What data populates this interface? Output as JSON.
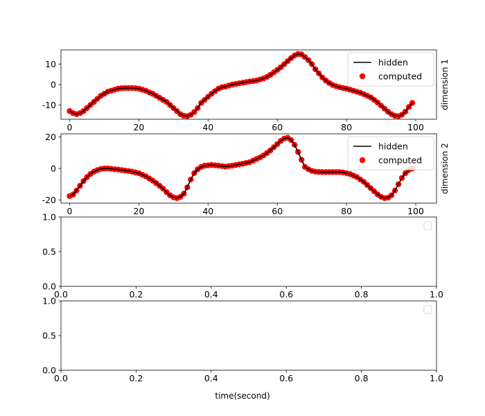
{
  "figure": {
    "xlabel": "time(second)"
  },
  "legend_labels": {
    "hidden": "hidden",
    "computed": "computed"
  },
  "colors": {
    "hidden_line": "#000000",
    "computed_points": "#ff0000",
    "axes": "#000000",
    "background": "#ffffff"
  },
  "chart_data": [
    {
      "type": "line",
      "title": "",
      "ylabel_right": "dimension 1",
      "xlim": [
        -2.5,
        106
      ],
      "ylim": [
        -17,
        17
      ],
      "xticks": [
        0,
        20,
        40,
        60,
        80,
        100
      ],
      "yticks": [
        -10,
        0,
        10
      ],
      "grid": false,
      "legend": {
        "position": "upper right",
        "entries": [
          "hidden",
          "computed"
        ]
      },
      "series": [
        {
          "name": "hidden",
          "kind": "line",
          "x": [
            0,
            1,
            2,
            3,
            4,
            5,
            6,
            7,
            8,
            9,
            10,
            11,
            12,
            13,
            14,
            15,
            16,
            17,
            18,
            19,
            20,
            21,
            22,
            23,
            24,
            25,
            26,
            27,
            28,
            29,
            30,
            31,
            32,
            33,
            34,
            35,
            36,
            37,
            38,
            39,
            40,
            41,
            42,
            43,
            44,
            45,
            46,
            47,
            48,
            49,
            50,
            51,
            52,
            53,
            54,
            55,
            56,
            57,
            58,
            59,
            60,
            61,
            62,
            63,
            64,
            65,
            66,
            67,
            68,
            69,
            70,
            71,
            72,
            73,
            74,
            75,
            76,
            77,
            78,
            79,
            80,
            81,
            82,
            83,
            84,
            85,
            86,
            87,
            88,
            89,
            90,
            91,
            92,
            93,
            94,
            95,
            96,
            97,
            98,
            99
          ],
          "y": [
            -13,
            -14,
            -14.5,
            -14,
            -13,
            -11.5,
            -10,
            -8.5,
            -7,
            -5.5,
            -4.5,
            -3.5,
            -3,
            -2.5,
            -2,
            -1.8,
            -1.7,
            -1.7,
            -1.7,
            -1.8,
            -2,
            -2.5,
            -3,
            -3.8,
            -4.5,
            -5.5,
            -6.5,
            -7.5,
            -8.5,
            -10,
            -11.5,
            -13,
            -14.5,
            -15.3,
            -15.5,
            -14.8,
            -13.5,
            -11.5,
            -9,
            -7.5,
            -6,
            -4.5,
            -3.2,
            -2,
            -1.3,
            -1,
            -0.5,
            0,
            0.3,
            0.6,
            0.9,
            1.2,
            1.5,
            1.7,
            2,
            2.5,
            3,
            3.8,
            4.8,
            6,
            7.2,
            8.5,
            10,
            11.5,
            13,
            14.3,
            15,
            14.8,
            13.5,
            12,
            10,
            7.5,
            5.5,
            3.5,
            2,
            0.8,
            -0.2,
            -0.8,
            -1.3,
            -1.7,
            -2,
            -2.5,
            -3,
            -3.5,
            -4,
            -4.7,
            -5.5,
            -6.3,
            -7.5,
            -8.8,
            -10.3,
            -11.8,
            -13.3,
            -14.5,
            -15.3,
            -15.5,
            -14.8,
            -13.3,
            -11,
            -9
          ]
        },
        {
          "name": "computed",
          "kind": "scatter",
          "x": [
            0,
            1,
            2,
            3,
            4,
            5,
            6,
            7,
            8,
            9,
            10,
            11,
            12,
            13,
            14,
            15,
            16,
            17,
            18,
            19,
            20,
            21,
            22,
            23,
            24,
            25,
            26,
            27,
            28,
            29,
            30,
            31,
            32,
            33,
            34,
            35,
            36,
            37,
            38,
            39,
            40,
            41,
            42,
            43,
            44,
            45,
            46,
            47,
            48,
            49,
            50,
            51,
            52,
            53,
            54,
            55,
            56,
            57,
            58,
            59,
            60,
            61,
            62,
            63,
            64,
            65,
            66,
            67,
            68,
            69,
            70,
            71,
            72,
            73,
            74,
            75,
            76,
            77,
            78,
            79,
            80,
            81,
            82,
            83,
            84,
            85,
            86,
            87,
            88,
            89,
            90,
            91,
            92,
            93,
            94,
            95,
            96,
            97,
            98,
            99
          ],
          "y": [
            -13,
            -14,
            -14.5,
            -14,
            -13,
            -11.5,
            -10,
            -8.5,
            -7,
            -5.5,
            -4.5,
            -3.5,
            -3,
            -2.5,
            -2,
            -1.8,
            -1.7,
            -1.7,
            -1.7,
            -1.8,
            -2,
            -2.5,
            -3,
            -3.8,
            -4.5,
            -5.5,
            -6.5,
            -7.5,
            -8.5,
            -10,
            -11.5,
            -13,
            -14.5,
            -15.3,
            -15.5,
            -14.8,
            -13.5,
            -11.5,
            -9,
            -7.5,
            -6,
            -4.5,
            -3.2,
            -2,
            -1.3,
            -1,
            -0.5,
            0,
            0.3,
            0.6,
            0.9,
            1.2,
            1.5,
            1.7,
            2,
            2.5,
            3,
            3.8,
            4.8,
            6,
            7.2,
            8.5,
            10,
            11.5,
            13,
            14.3,
            15,
            14.8,
            13.5,
            12,
            10,
            7.5,
            5.5,
            3.5,
            2,
            0.8,
            -0.2,
            -0.8,
            -1.3,
            -1.7,
            -2,
            -2.5,
            -3,
            -3.5,
            -4,
            -4.7,
            -5.5,
            -6.3,
            -7.5,
            -8.8,
            -10.3,
            -11.8,
            -13.3,
            -14.5,
            -15.3,
            -15.5,
            -14.8,
            -13.3,
            -11,
            -9
          ]
        }
      ]
    },
    {
      "type": "line",
      "title": "",
      "ylabel_right": "dimension 2",
      "xlim": [
        -2.5,
        106
      ],
      "ylim": [
        -22,
        22
      ],
      "xticks": [
        0,
        20,
        40,
        60,
        80,
        100
      ],
      "yticks": [
        -20,
        0,
        20
      ],
      "grid": false,
      "legend": {
        "position": "upper right",
        "entries": [
          "hidden",
          "computed"
        ]
      },
      "series": [
        {
          "name": "hidden",
          "kind": "line",
          "x": [
            0,
            1,
            2,
            3,
            4,
            5,
            6,
            7,
            8,
            9,
            10,
            11,
            12,
            13,
            14,
            15,
            16,
            17,
            18,
            19,
            20,
            21,
            22,
            23,
            24,
            25,
            26,
            27,
            28,
            29,
            30,
            31,
            32,
            33,
            34,
            35,
            36,
            37,
            38,
            39,
            40,
            41,
            42,
            43,
            44,
            45,
            46,
            47,
            48,
            49,
            50,
            51,
            52,
            53,
            54,
            55,
            56,
            57,
            58,
            59,
            60,
            61,
            62,
            63,
            64,
            65,
            66,
            67,
            68,
            69,
            70,
            71,
            72,
            73,
            74,
            75,
            76,
            77,
            78,
            79,
            80,
            81,
            82,
            83,
            84,
            85,
            86,
            87,
            88,
            89,
            90,
            91,
            92,
            93,
            94,
            95,
            96,
            97,
            98,
            99
          ],
          "y": [
            -17.5,
            -16.5,
            -14,
            -11,
            -8,
            -5.5,
            -3.5,
            -2,
            -1,
            -0.3,
            0,
            0,
            -0.2,
            -0.5,
            -0.7,
            -1,
            -1.3,
            -1.6,
            -2,
            -2.5,
            -3,
            -4,
            -5,
            -6.3,
            -7.7,
            -9.3,
            -11,
            -12.8,
            -15,
            -17,
            -18.3,
            -18.8,
            -18,
            -16,
            -12,
            -7,
            -3,
            -0.5,
            1,
            1.8,
            2,
            2.2,
            2,
            1.8,
            1.5,
            1.2,
            1.5,
            1.8,
            2.2,
            2.6,
            3,
            3.5,
            4,
            5,
            6,
            7,
            8.3,
            9.8,
            11.5,
            13.5,
            15.5,
            17.5,
            19,
            19.5,
            18,
            15,
            10.5,
            5.5,
            1,
            -0.5,
            -1.5,
            -2,
            -2.2,
            -2.3,
            -2.3,
            -2.3,
            -2.3,
            -2.3,
            -2.3,
            -2.5,
            -3,
            -3.5,
            -4.5,
            -5.5,
            -7,
            -8.5,
            -10.5,
            -12.5,
            -14.5,
            -16.5,
            -18,
            -18.8,
            -18.5,
            -17,
            -14,
            -10,
            -6,
            -3,
            -1,
            0
          ]
        },
        {
          "name": "computed",
          "kind": "scatter",
          "x": [
            0,
            1,
            2,
            3,
            4,
            5,
            6,
            7,
            8,
            9,
            10,
            11,
            12,
            13,
            14,
            15,
            16,
            17,
            18,
            19,
            20,
            21,
            22,
            23,
            24,
            25,
            26,
            27,
            28,
            29,
            30,
            31,
            32,
            33,
            34,
            35,
            36,
            37,
            38,
            39,
            40,
            41,
            42,
            43,
            44,
            45,
            46,
            47,
            48,
            49,
            50,
            51,
            52,
            53,
            54,
            55,
            56,
            57,
            58,
            59,
            60,
            61,
            62,
            63,
            64,
            65,
            66,
            67,
            68,
            69,
            70,
            71,
            72,
            73,
            74,
            75,
            76,
            77,
            78,
            79,
            80,
            81,
            82,
            83,
            84,
            85,
            86,
            87,
            88,
            89,
            90,
            91,
            92,
            93,
            94,
            95,
            96,
            97,
            98,
            99
          ],
          "y": [
            -17.5,
            -16.5,
            -14,
            -11,
            -8,
            -5.5,
            -3.5,
            -2,
            -1,
            -0.3,
            0,
            0,
            -0.2,
            -0.5,
            -0.7,
            -1,
            -1.3,
            -1.6,
            -2,
            -2.5,
            -3,
            -4,
            -5,
            -6.3,
            -7.7,
            -9.3,
            -11,
            -12.8,
            -15,
            -17,
            -18.3,
            -18.8,
            -18,
            -16,
            -12,
            -7,
            -3,
            -0.5,
            1,
            1.8,
            2,
            2.2,
            2,
            1.8,
            1.5,
            1.2,
            1.5,
            1.8,
            2.2,
            2.6,
            3,
            3.5,
            4,
            5,
            6,
            7,
            8.3,
            9.8,
            11.5,
            13.5,
            15.5,
            17.5,
            19,
            19.5,
            18,
            15,
            10.5,
            5.5,
            1,
            -0.5,
            -1.5,
            -2,
            -2.2,
            -2.3,
            -2.3,
            -2.3,
            -2.3,
            -2.3,
            -2.3,
            -2.5,
            -3,
            -3.5,
            -4.5,
            -5.5,
            -7,
            -8.5,
            -10.5,
            -12.5,
            -14.5,
            -16.5,
            -18,
            -18.8,
            -18.5,
            -17,
            -14,
            -10,
            -6,
            -3,
            -1,
            0
          ]
        }
      ]
    },
    {
      "type": "line",
      "title": "",
      "xlim": [
        0,
        1
      ],
      "ylim": [
        0,
        1
      ],
      "xticks": [
        "0.0",
        "0.2",
        "0.4",
        "0.6",
        "0.8",
        "1.0"
      ],
      "yticks": [
        "0.0",
        "0.5",
        "1.0"
      ],
      "grid": false,
      "legend": {
        "position": "upper right",
        "entries": []
      },
      "series": []
    },
    {
      "type": "line",
      "title": "",
      "xlim": [
        0,
        1
      ],
      "ylim": [
        0,
        1
      ],
      "xticks": [
        "0.0",
        "0.2",
        "0.4",
        "0.6",
        "0.8",
        "1.0"
      ],
      "yticks": [
        "0.0",
        "0.5",
        "1.0"
      ],
      "grid": false,
      "legend": {
        "position": "upper right",
        "entries": []
      },
      "series": []
    }
  ]
}
